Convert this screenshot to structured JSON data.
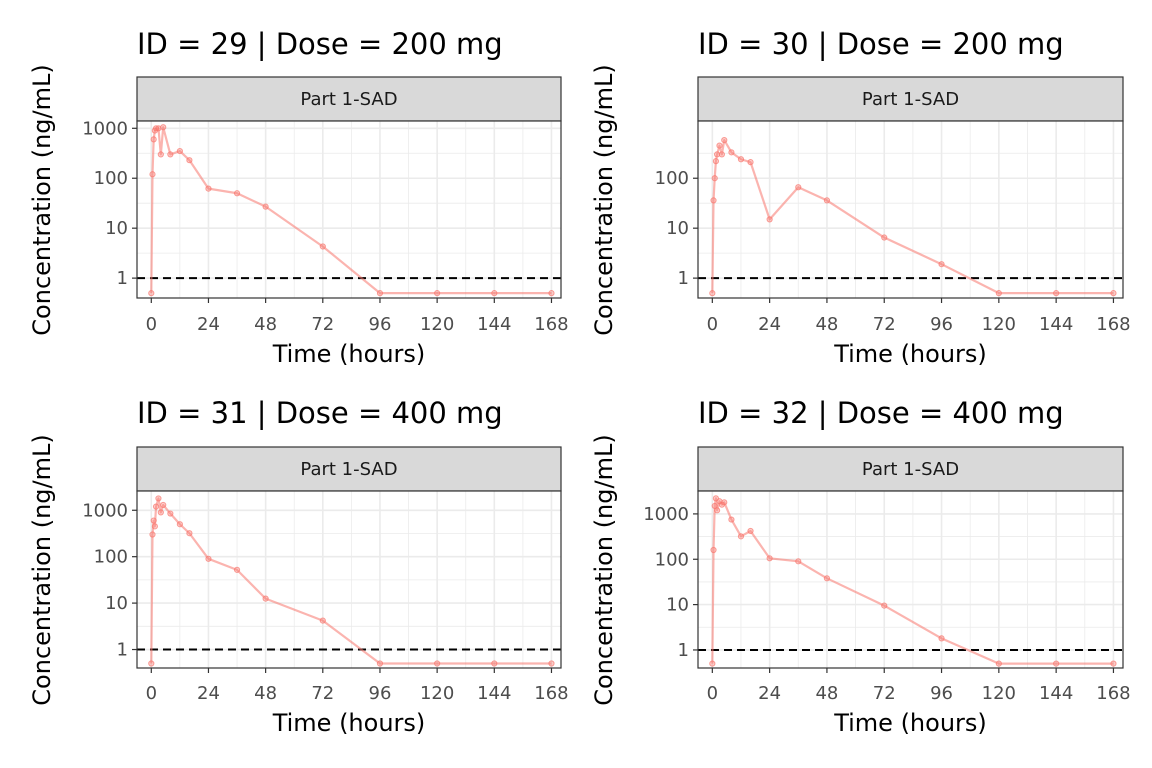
{
  "colors": {
    "series": "#f8766d",
    "lloq": "#000000",
    "grid": "#ebebeb",
    "strip": "#d9d9d9",
    "border": "#333333"
  },
  "chart_data": [
    {
      "type": "line",
      "title": "ID = 29 | Dose = 200 mg",
      "facet": "Part 1-SAD",
      "xlabel": "Time (hours)",
      "ylabel": "Concentration (ng/mL)",
      "y_scale": "log10",
      "xlim": [
        -6,
        172
      ],
      "ylim": [
        0.4,
        1400
      ],
      "x_ticks": [
        0,
        24,
        48,
        72,
        96,
        120,
        144,
        168
      ],
      "x_tick_labels": [
        "0",
        "24",
        "48",
        "72",
        "96",
        "120",
        "144",
        "168"
      ],
      "y_ticks": [
        1,
        10,
        100,
        1000
      ],
      "y_tick_labels": [
        "1",
        "10",
        "100",
        "1000"
      ],
      "reference_line": {
        "y": 1,
        "style": "dashed"
      },
      "grid": true,
      "x": [
        0,
        0.5,
        1,
        1.5,
        2,
        3,
        4,
        5,
        8,
        12,
        16,
        24,
        36,
        48,
        72,
        96,
        120,
        144,
        168
      ],
      "y": [
        0.5,
        120,
        600,
        900,
        1000,
        1000,
        300,
        1050,
        300,
        350,
        230,
        62,
        50,
        27,
        4.3,
        0.5,
        0.5,
        0.5,
        0.5
      ]
    },
    {
      "type": "line",
      "title": "ID = 30 | Dose = 200 mg",
      "facet": "Part 1-SAD",
      "xlabel": "Time (hours)",
      "ylabel": "Concentration (ng/mL)",
      "y_scale": "log10",
      "xlim": [
        -6,
        172
      ],
      "ylim": [
        0.4,
        1400
      ],
      "x_ticks": [
        0,
        24,
        48,
        72,
        96,
        120,
        144,
        168
      ],
      "x_tick_labels": [
        "0",
        "24",
        "48",
        "72",
        "96",
        "120",
        "144",
        "168"
      ],
      "y_ticks": [
        1,
        10,
        100
      ],
      "y_tick_labels": [
        "1",
        "10",
        "100"
      ],
      "reference_line": {
        "y": 1,
        "style": "dashed"
      },
      "grid": true,
      "x": [
        0,
        0.5,
        1,
        1.5,
        2,
        3,
        4,
        5,
        8,
        12,
        16,
        24,
        36,
        48,
        72,
        96,
        120,
        144,
        168
      ],
      "y": [
        0.5,
        36,
        100,
        220,
        300,
        450,
        300,
        580,
        330,
        240,
        210,
        15,
        66,
        36,
        6.5,
        1.9,
        0.5,
        0.5,
        0.5
      ]
    },
    {
      "type": "line",
      "title": "ID = 31 | Dose = 400 mg",
      "facet": "Part 1-SAD",
      "xlabel": "Time (hours)",
      "ylabel": "Concentration (ng/mL)",
      "y_scale": "log10",
      "xlim": [
        -6,
        172
      ],
      "ylim": [
        0.4,
        2600
      ],
      "x_ticks": [
        0,
        24,
        48,
        72,
        96,
        120,
        144,
        168
      ],
      "x_tick_labels": [
        "0",
        "24",
        "48",
        "72",
        "96",
        "120",
        "144",
        "168"
      ],
      "y_ticks": [
        1,
        10,
        100,
        1000
      ],
      "y_tick_labels": [
        "1",
        "10",
        "100",
        "1000"
      ],
      "reference_line": {
        "y": 1,
        "style": "dashed"
      },
      "grid": true,
      "x": [
        0,
        0.5,
        1,
        1.5,
        2,
        3,
        4,
        5,
        8,
        12,
        16,
        24,
        36,
        48,
        72,
        96,
        120,
        144,
        168
      ],
      "y": [
        0.5,
        300,
        600,
        450,
        1200,
        1800,
        900,
        1300,
        850,
        500,
        320,
        90,
        52,
        12.5,
        4.2,
        0.5,
        0.5,
        0.5,
        0.5
      ]
    },
    {
      "type": "line",
      "title": "ID = 32 | Dose = 400 mg",
      "facet": "Part 1-SAD",
      "xlabel": "Time (hours)",
      "ylabel": "Concentration (ng/mL)",
      "y_scale": "log10",
      "xlim": [
        -6,
        172
      ],
      "ylim": [
        0.4,
        3200
      ],
      "x_ticks": [
        0,
        24,
        48,
        72,
        96,
        120,
        144,
        168
      ],
      "x_tick_labels": [
        "0",
        "24",
        "48",
        "72",
        "96",
        "120",
        "144",
        "168"
      ],
      "y_ticks": [
        1,
        10,
        100,
        1000
      ],
      "y_tick_labels": [
        "1",
        "10",
        "100",
        "1000"
      ],
      "reference_line": {
        "y": 1,
        "style": "dashed"
      },
      "grid": true,
      "x": [
        0,
        0.5,
        1,
        1.5,
        2,
        3,
        4,
        5,
        8,
        12,
        16,
        24,
        36,
        48,
        72,
        96,
        120,
        144,
        168
      ],
      "y": [
        0.5,
        160,
        1500,
        2200,
        1200,
        1900,
        1600,
        1800,
        750,
        320,
        420,
        105,
        90,
        38,
        9.5,
        1.8,
        0.5,
        0.5,
        0.5
      ]
    }
  ]
}
